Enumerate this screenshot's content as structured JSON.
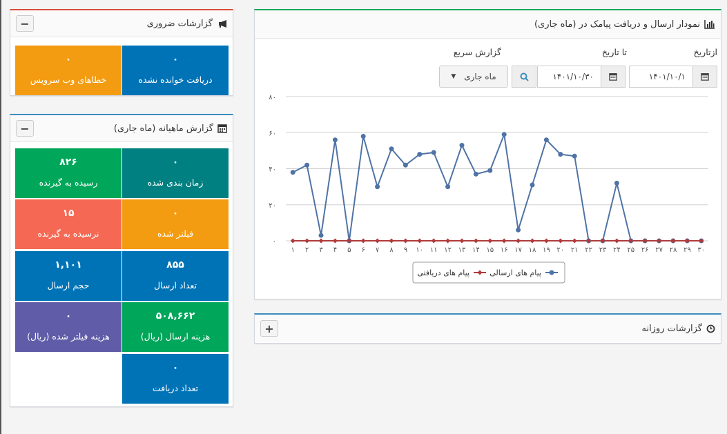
{
  "colors": {
    "accent_red": "#dd4b39",
    "accent_teal": "#00a65a",
    "sent_series": "#4f73a5",
    "received_series": "#b03a3a"
  },
  "urgent": {
    "title": "گزارشات ضروری",
    "icon": "bullhorn-icon",
    "collapse": "−",
    "tiles": [
      {
        "value": "۰",
        "label": "دریافت خوانده نشده",
        "color": "blue"
      },
      {
        "value": "۰",
        "label": "خطاهای وب سرویس",
        "color": "orange"
      }
    ]
  },
  "monthly": {
    "title": "گزارش ماهیانه (ماه جاری)",
    "icon": "calendar-icon",
    "collapse": "−",
    "tiles": [
      {
        "value": "۰",
        "label": "زمان بندی شده"
      },
      {
        "value": "۸۲۶",
        "label": "رسیده به گیرنده"
      },
      {
        "value": "۰",
        "label": "فیلتر شده"
      },
      {
        "value": "۱۵",
        "label": "نرسیده به گیرنده"
      },
      {
        "value": "۸۵۵",
        "label": "تعداد ارسال"
      },
      {
        "value": "۱,۱۰۱",
        "label": "حجم ارسال"
      },
      {
        "value": "۵۰۸,۶۶۲",
        "label": "هزینه ارسال (ریال)"
      },
      {
        "value": "۰",
        "label": "هزینه فیلتر شده (ریال)"
      },
      {
        "value": "۰",
        "label": "تعداد دریافت"
      }
    ]
  },
  "chart_panel": {
    "title": "نمودار ارسال و دریافت پیامک در (ماه جاری)",
    "icon": "bar-chart-icon",
    "from_label": "ازتاریخ",
    "to_label": "تا تاریخ",
    "quick_label": "گزارش سریع",
    "from_value": "۱۴۰۱/۱۰/۱",
    "to_value": "۱۴۰۱/۱۰/۳۰",
    "quick_value": "ماه جاری"
  },
  "daily": {
    "title": "گزارشات روزانه",
    "icon": "clock-icon",
    "expand": "+"
  },
  "chart_data": {
    "type": "line",
    "x": [
      "۱",
      "۲",
      "۳",
      "۴",
      "۵",
      "۶",
      "۷",
      "۸",
      "۹",
      "۱۰",
      "۱۱",
      "۱۲",
      "۱۳",
      "۱۴",
      "۱۵",
      "۱۶",
      "۱۷",
      "۱۸",
      "۱۹",
      "۲۰",
      "۲۱",
      "۲۲",
      "۲۳",
      "۲۴",
      "۲۵",
      "۲۶",
      "۲۷",
      "۲۸",
      "۲۹",
      "۳۰"
    ],
    "yticks": [
      "۰",
      "۲۰",
      "۴۰",
      "۶۰",
      "۸۰"
    ],
    "ylim": [
      0,
      80
    ],
    "grid": true,
    "legend_position": "bottom",
    "series": [
      {
        "name": "پیام های ارسالی",
        "values": [
          38,
          42,
          3,
          56,
          0,
          58,
          30,
          51,
          42,
          48,
          49,
          30,
          53,
          37,
          39,
          59,
          6,
          31,
          56,
          48,
          47,
          0,
          0,
          32,
          0,
          0,
          0,
          0,
          0,
          0
        ]
      },
      {
        "name": "پیام های دریافتی",
        "values": [
          0,
          0,
          0,
          0,
          0,
          0,
          0,
          0,
          0,
          0,
          0,
          0,
          0,
          0,
          0,
          0,
          0,
          0,
          0,
          0,
          0,
          0,
          0,
          0,
          0,
          0,
          0,
          0,
          0,
          0
        ]
      }
    ]
  }
}
